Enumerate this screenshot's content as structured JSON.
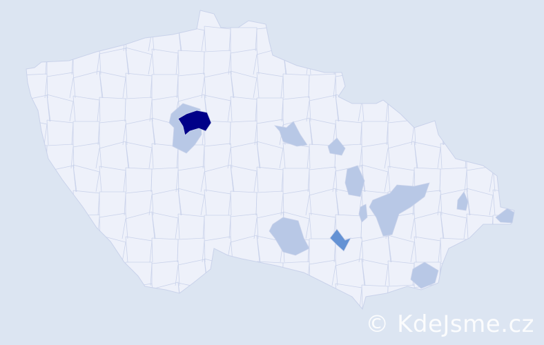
{
  "watermark": "© KdeJsme.cz",
  "colors": {
    "background": "#dce5f2",
    "land": "#eef1fa",
    "border": "#c9d2ea",
    "low": "#b8c8e6",
    "medium": "#6492d4",
    "high": "#000088"
  }
}
